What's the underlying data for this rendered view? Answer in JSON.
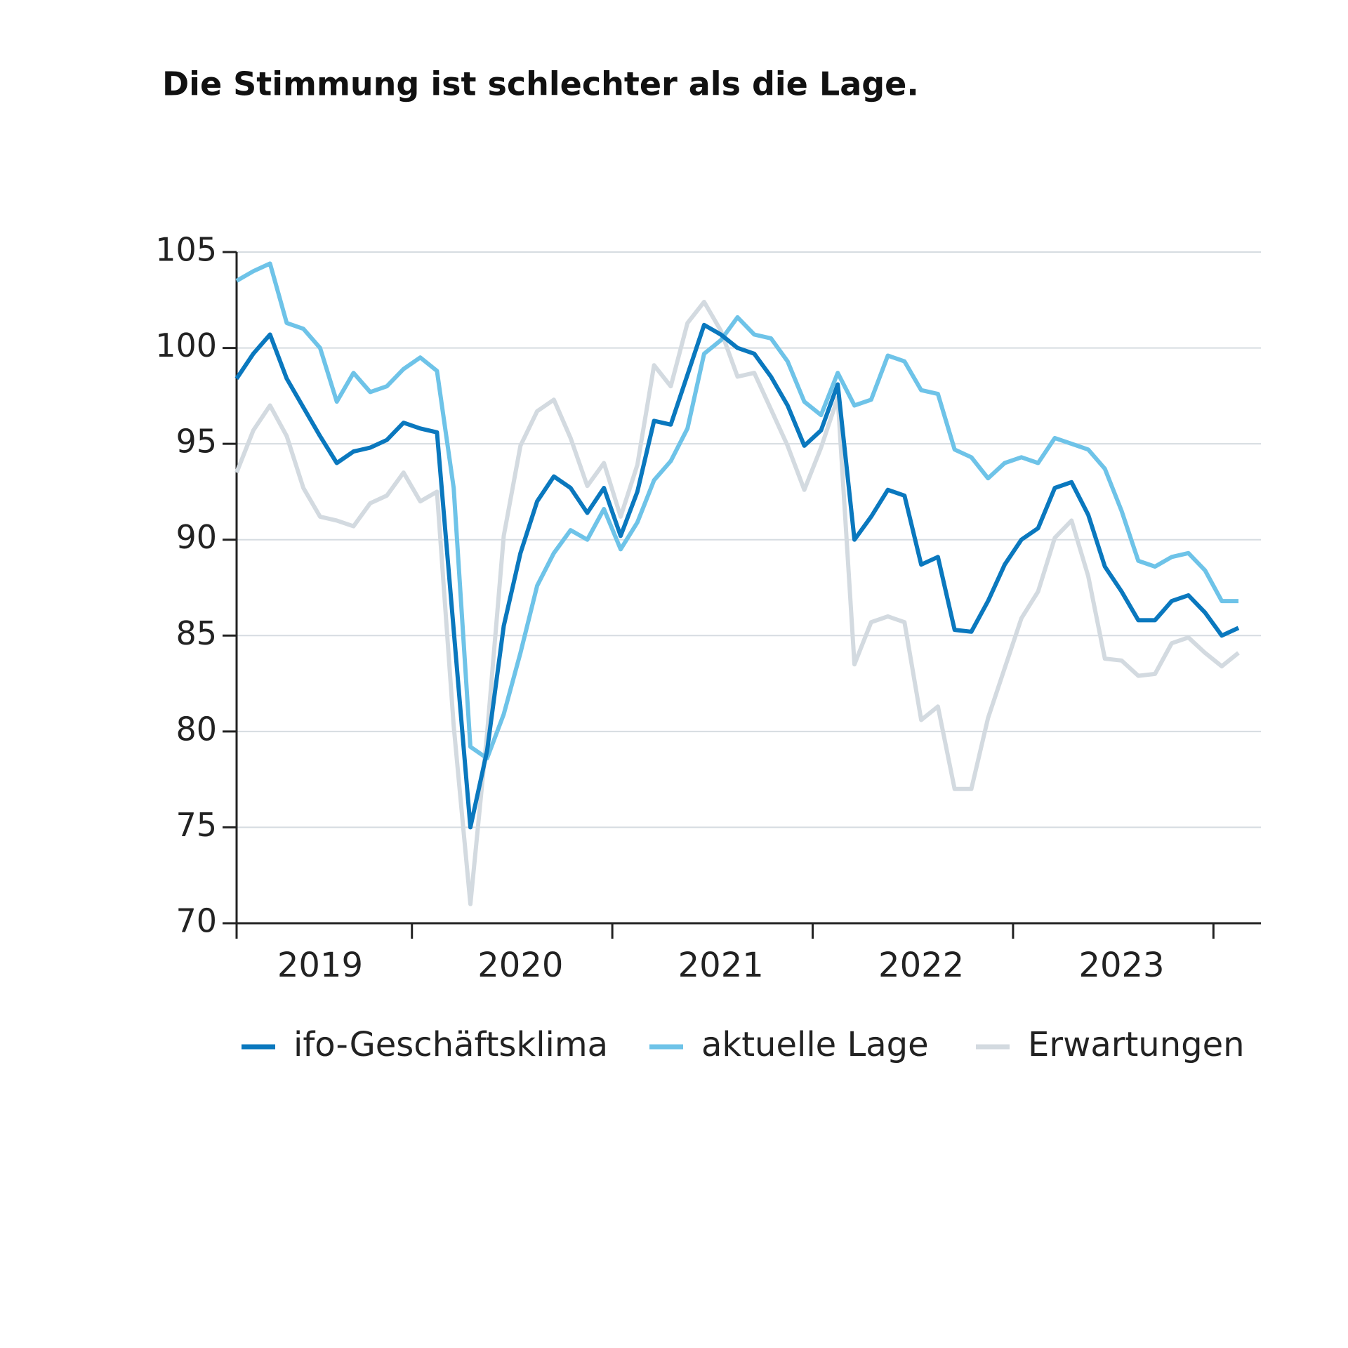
{
  "chart_data": {
    "type": "line",
    "title": "Die Stimmung ist schlechter als die Lage.",
    "categories": [
      null,
      null,
      null,
      null,
      null,
      "2019",
      null,
      null,
      null,
      null,
      null,
      null,
      null,
      null,
      null,
      null,
      null,
      "2020",
      null,
      null,
      null,
      null,
      null,
      null,
      null,
      null,
      null,
      null,
      null,
      "2021",
      null,
      null,
      null,
      null,
      null,
      null,
      null,
      null,
      null,
      null,
      null,
      "2022",
      null,
      null,
      null,
      null,
      null,
      null,
      null,
      null,
      null,
      null,
      null,
      "2023",
      null,
      null,
      null,
      null,
      null,
      null,
      null
    ],
    "ylim": [
      70,
      105
    ],
    "yticks": [
      70,
      75,
      80,
      85,
      90,
      95,
      100,
      105
    ],
    "grid": true,
    "series": [
      {
        "name": "ifo-Geschäftsklima",
        "color": "#0a78be",
        "values": [
          98.4,
          99.7,
          100.7,
          98.4,
          96.9,
          95.4,
          94.0,
          94.6,
          94.8,
          95.2,
          96.1,
          95.8,
          95.6,
          85.3,
          75.0,
          79.0,
          85.5,
          89.3,
          92.0,
          93.3,
          92.7,
          91.4,
          92.7,
          90.2,
          92.5,
          96.2,
          96.0,
          98.6,
          101.2,
          100.7,
          100.0,
          99.7,
          98.5,
          97.0,
          94.9,
          95.7,
          98.1,
          90.0,
          91.2,
          92.6,
          92.3,
          88.7,
          89.1,
          85.3,
          85.2,
          86.8,
          88.7,
          90.0,
          90.6,
          92.7,
          93.0,
          91.3,
          88.6,
          87.3,
          85.8,
          85.8,
          86.8,
          87.1,
          86.2,
          85.0,
          85.4
        ]
      },
      {
        "name": "aktuelle Lage",
        "color": "#6ec3e8",
        "values": [
          103.5,
          104.0,
          104.4,
          101.3,
          101.0,
          100.0,
          97.2,
          98.7,
          97.7,
          98.0,
          98.9,
          99.5,
          98.8,
          92.7,
          79.2,
          78.6,
          80.9,
          84.1,
          87.6,
          89.3,
          90.5,
          90.0,
          91.6,
          89.5,
          90.9,
          93.1,
          94.1,
          95.8,
          99.7,
          100.4,
          101.6,
          100.7,
          100.5,
          99.3,
          97.2,
          96.5,
          98.7,
          97.0,
          97.3,
          99.6,
          99.3,
          97.8,
          97.6,
          94.7,
          94.3,
          93.2,
          94.0,
          94.3,
          94.0,
          95.3,
          95.0,
          94.7,
          93.7,
          91.5,
          88.9,
          88.6,
          89.1,
          89.3,
          88.4,
          86.8,
          86.8
        ]
      },
      {
        "name": "Erwartungen",
        "color": "#d3dae0",
        "values": [
          93.5,
          95.7,
          97.0,
          95.4,
          92.7,
          91.2,
          91.0,
          90.7,
          91.9,
          92.3,
          93.5,
          92.0,
          92.5,
          80.3,
          71.0,
          79.9,
          90.2,
          94.9,
          96.7,
          97.3,
          95.3,
          92.8,
          94.0,
          91.2,
          93.9,
          99.1,
          98.0,
          101.3,
          102.4,
          100.9,
          98.5,
          98.7,
          96.8,
          94.9,
          92.6,
          94.8,
          97.4,
          83.5,
          85.7,
          86.0,
          85.7,
          80.6,
          81.3,
          77.0,
          77.0,
          80.7,
          83.3,
          85.9,
          87.3,
          90.1,
          91.0,
          88.1,
          83.8,
          83.7,
          82.9,
          83.0,
          84.6,
          84.9,
          84.1,
          83.4,
          84.1
        ]
      }
    ]
  }
}
